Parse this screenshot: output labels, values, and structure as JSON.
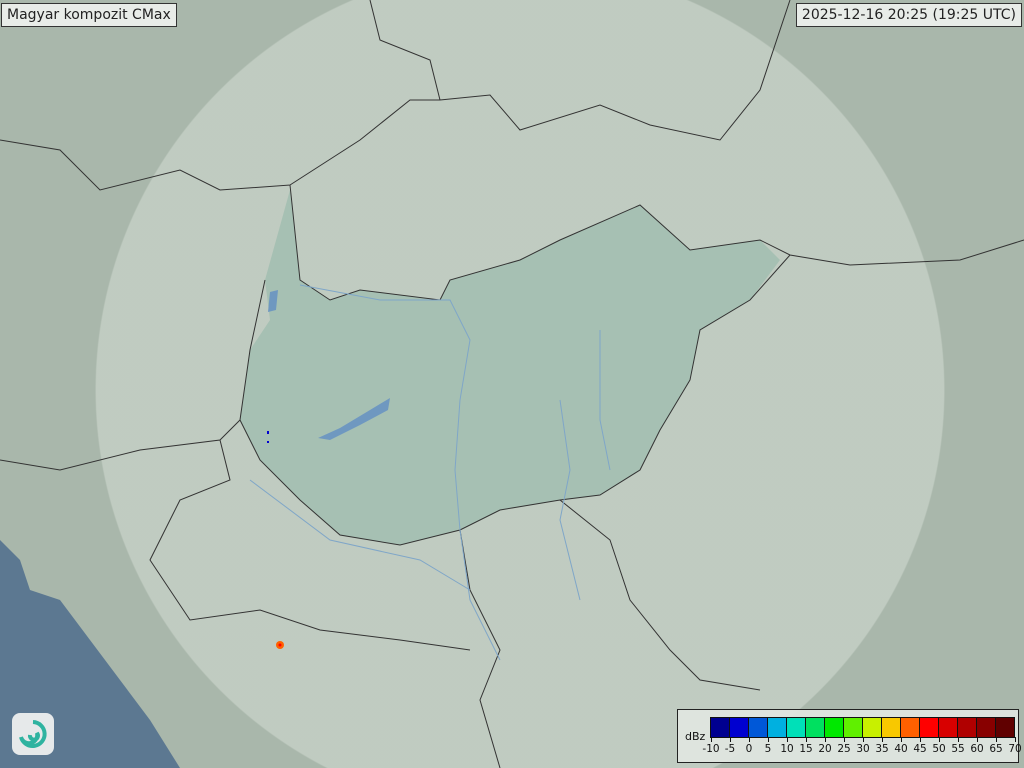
{
  "header": {
    "title": "Magyar kompozit  CMax",
    "timestamp": "2025-12-16 20:25 (19:25 UTC)"
  },
  "map": {
    "type": "radar composite",
    "base_colors": {
      "land": "#a9b7ab",
      "radar_coverage": "#c9d3ca",
      "hungary": "#9fbaae",
      "sea": "#5c7891",
      "border": "#333333",
      "river": "#7fa6c8"
    },
    "echoes": [
      {
        "location": "western Hungary near border",
        "color": "#0000d0"
      },
      {
        "location": "northern Croatia",
        "color": "#ff6000"
      }
    ]
  },
  "legend": {
    "unit": "dBz",
    "ticks": [
      "-10",
      "-5",
      "0",
      "5",
      "10",
      "15",
      "20",
      "25",
      "30",
      "35",
      "40",
      "45",
      "50",
      "55",
      "60",
      "65",
      "70"
    ],
    "colors": [
      "#000090",
      "#0000d0",
      "#0058d8",
      "#00b0e0",
      "#00e0b8",
      "#00e060",
      "#00e800",
      "#60f000",
      "#c8f000",
      "#f8c800",
      "#ff6000",
      "#ff0000",
      "#d80000",
      "#b00000",
      "#880000",
      "#600000"
    ]
  },
  "logo": {
    "icon": "swirl-logo-icon"
  }
}
